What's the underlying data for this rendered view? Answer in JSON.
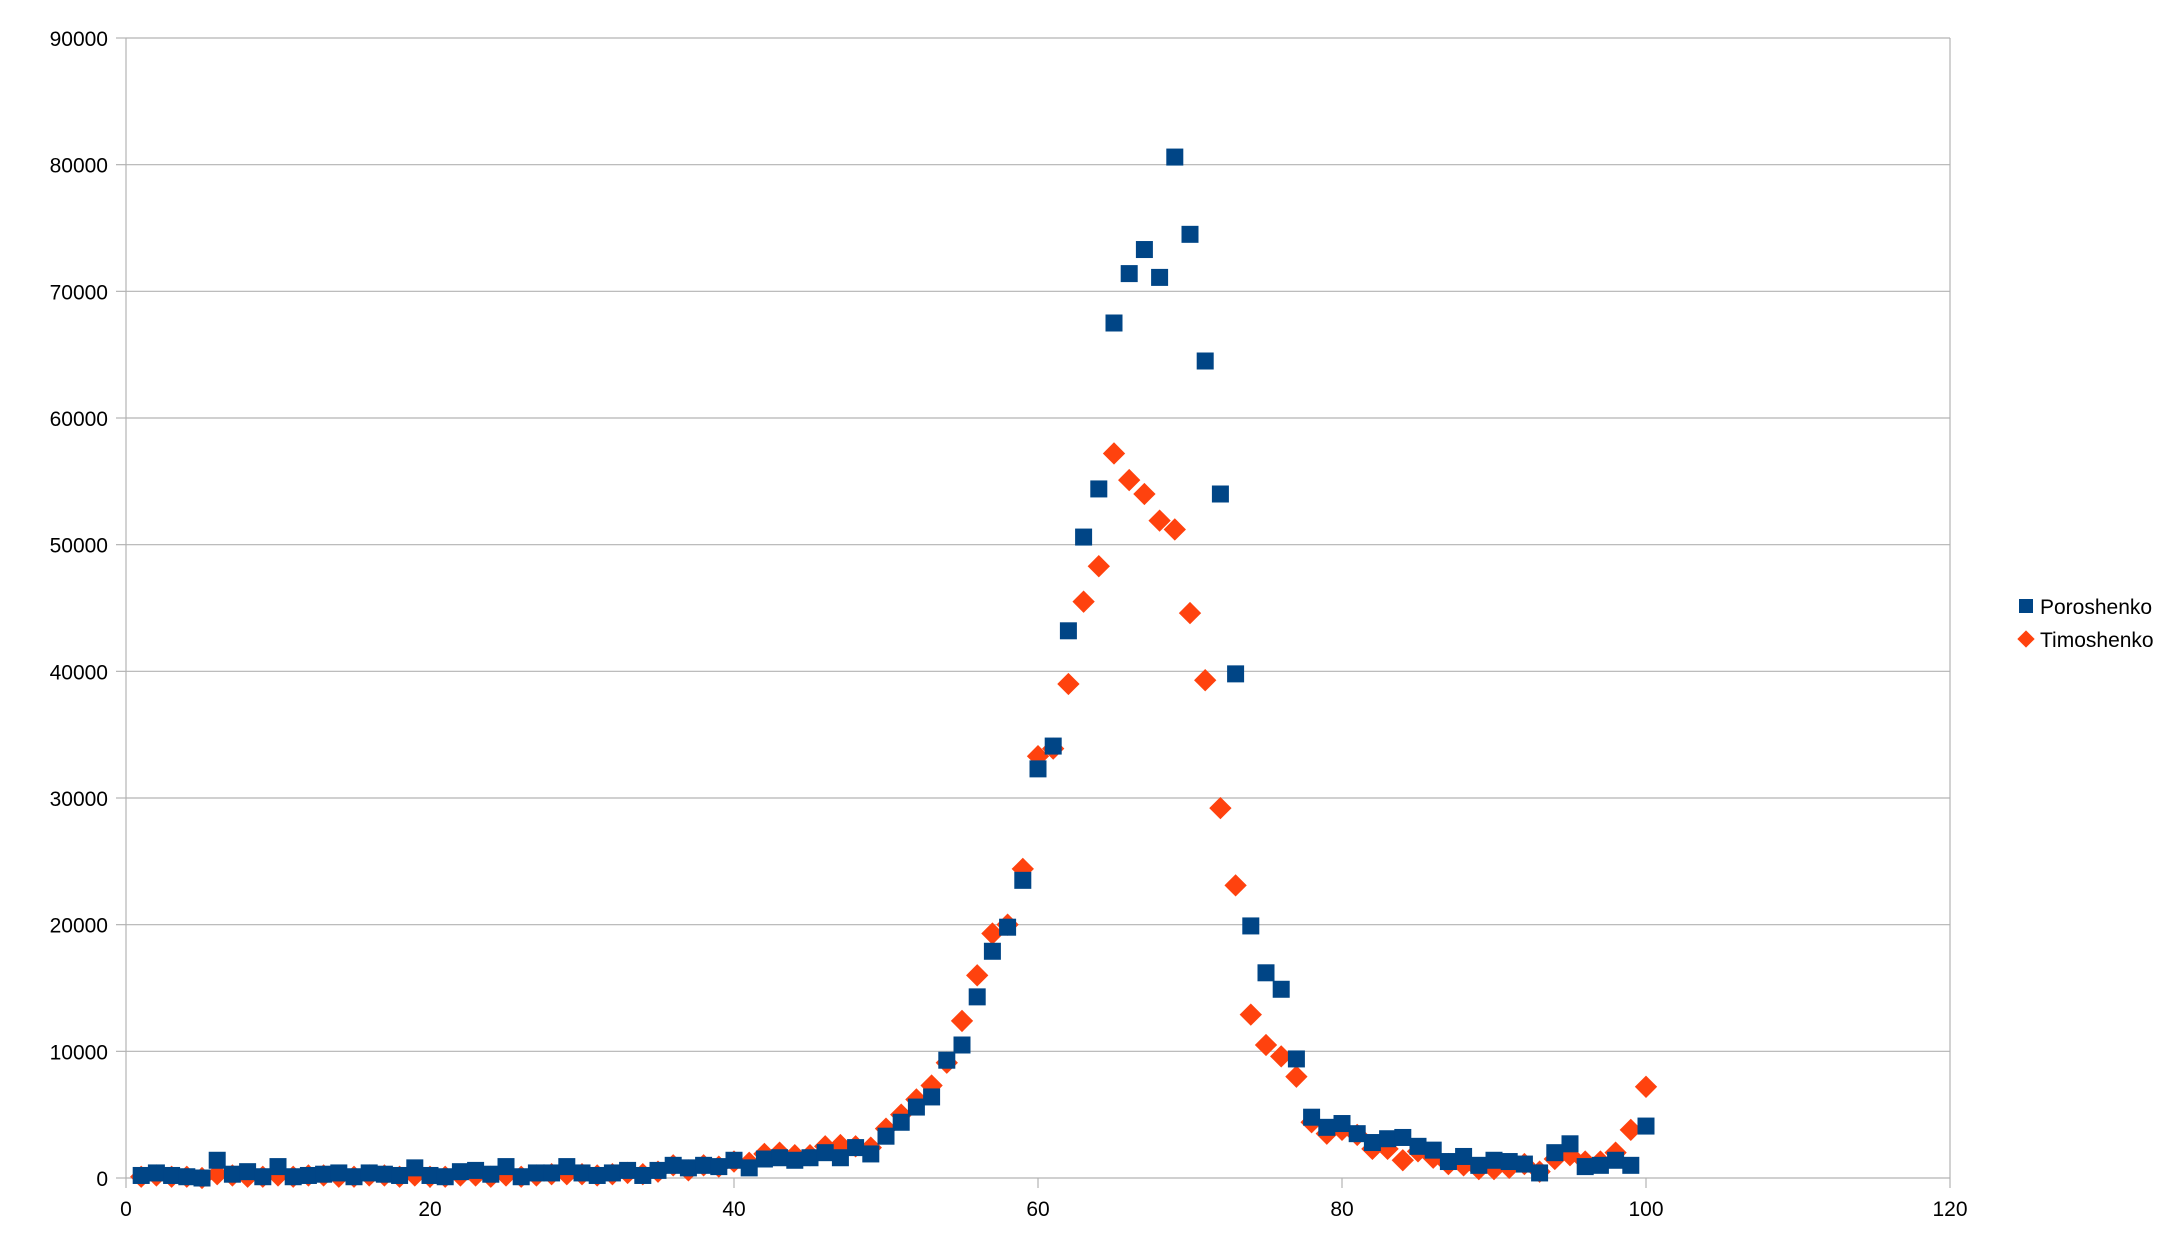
{
  "chart_data": {
    "type": "scatter",
    "title": "",
    "xlabel": "",
    "ylabel": "",
    "xlim": [
      0,
      120
    ],
    "ylim": [
      0,
      90000
    ],
    "x_ticks": [
      "0",
      "20",
      "40",
      "60",
      "80",
      "100",
      "120"
    ],
    "y_ticks": [
      "0",
      "10000",
      "20000",
      "30000",
      "40000",
      "50000",
      "60000",
      "70000",
      "80000",
      "90000"
    ],
    "grid": "horizontal",
    "legend_position": "right",
    "series": [
      {
        "name": "Poroshenko",
        "marker": "square",
        "color": "#004586",
        "x": [
          1,
          2,
          3,
          4,
          5,
          6,
          7,
          8,
          9,
          10,
          11,
          12,
          13,
          14,
          15,
          16,
          17,
          18,
          19,
          20,
          21,
          22,
          23,
          24,
          25,
          26,
          27,
          28,
          29,
          30,
          31,
          32,
          33,
          34,
          35,
          36,
          37,
          38,
          39,
          40,
          41,
          42,
          43,
          44,
          45,
          46,
          47,
          48,
          49,
          50,
          51,
          52,
          53,
          54,
          55,
          56,
          57,
          58,
          59,
          60,
          61,
          62,
          63,
          64,
          65,
          66,
          67,
          68,
          69,
          70,
          71,
          72,
          73,
          74,
          75,
          76,
          77,
          78,
          79,
          80,
          81,
          82,
          83,
          84,
          85,
          86,
          87,
          88,
          89,
          90,
          91,
          92,
          93,
          94,
          95,
          96,
          97,
          98,
          99,
          100
        ],
        "y": [
          200,
          400,
          200,
          100,
          0,
          1400,
          300,
          500,
          100,
          900,
          100,
          200,
          300,
          400,
          100,
          400,
          300,
          200,
          800,
          200,
          100,
          500,
          600,
          300,
          900,
          100,
          400,
          400,
          900,
          400,
          200,
          400,
          600,
          200,
          600,
          1000,
          800,
          1000,
          900,
          1400,
          800,
          1500,
          1600,
          1400,
          1600,
          2000,
          1600,
          2400,
          1900,
          3300,
          4400,
          5600,
          6400,
          9300,
          10500,
          14300,
          17900,
          19800,
          23500,
          32300,
          34100,
          43200,
          50600,
          54400,
          67500,
          71400,
          73300,
          71100,
          80600,
          74500,
          64500,
          54000,
          39800,
          19900,
          16200,
          14900,
          9400,
          4800,
          4000,
          4300,
          3500,
          2800,
          3100,
          3200,
          2500,
          2200,
          1300,
          1700,
          1000,
          1400,
          1300,
          1100,
          400,
          2000,
          2700,
          900,
          1000,
          1400,
          1000,
          4100
        ]
      },
      {
        "name": "Timoshenko",
        "marker": "diamond",
        "color": "#ff420e",
        "x": [
          1,
          2,
          3,
          4,
          5,
          6,
          7,
          8,
          9,
          10,
          11,
          12,
          13,
          14,
          15,
          16,
          17,
          18,
          19,
          20,
          21,
          22,
          23,
          24,
          25,
          26,
          27,
          28,
          29,
          30,
          31,
          32,
          33,
          34,
          35,
          36,
          37,
          38,
          39,
          40,
          41,
          42,
          43,
          44,
          45,
          46,
          47,
          48,
          49,
          50,
          51,
          52,
          53,
          54,
          55,
          56,
          57,
          58,
          59,
          60,
          61,
          62,
          63,
          64,
          65,
          66,
          67,
          68,
          69,
          70,
          71,
          72,
          73,
          74,
          75,
          76,
          77,
          78,
          79,
          80,
          81,
          82,
          83,
          84,
          85,
          86,
          87,
          88,
          89,
          90,
          91,
          92,
          93,
          94,
          95,
          96,
          97,
          98,
          99,
          100
        ],
        "y": [
          100,
          200,
          100,
          100,
          0,
          300,
          200,
          100,
          100,
          200,
          100,
          200,
          200,
          100,
          100,
          200,
          200,
          100,
          200,
          100,
          100,
          200,
          200,
          100,
          200,
          100,
          200,
          300,
          300,
          300,
          200,
          300,
          400,
          300,
          500,
          1000,
          600,
          1000,
          900,
          1300,
          1200,
          1900,
          2000,
          1800,
          1800,
          2500,
          2600,
          2500,
          2400,
          3900,
          5000,
          6200,
          7300,
          9100,
          12400,
          16000,
          19300,
          20000,
          24400,
          33300,
          33900,
          39000,
          45500,
          48300,
          57200,
          55100,
          54000,
          51900,
          51200,
          44600,
          39300,
          29200,
          23100,
          12900,
          10500,
          9600,
          8000,
          4400,
          3500,
          3800,
          3400,
          2300,
          2300,
          1400,
          2100,
          1600,
          1100,
          1000,
          700,
          700,
          800,
          1100,
          500,
          1500,
          1800,
          1300,
          1300,
          2000,
          3800,
          7200
        ]
      }
    ]
  }
}
